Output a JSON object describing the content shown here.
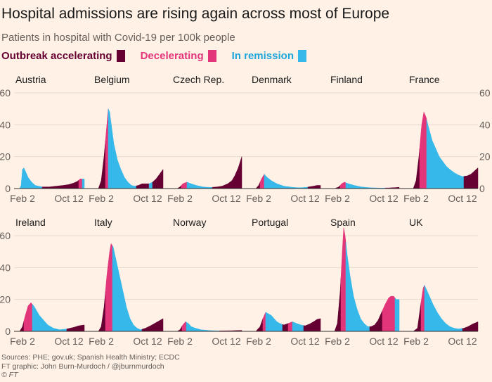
{
  "header": {
    "title": "Hospital admissions are rising again across most of Europe",
    "subtitle": "Patients in hospital with Covid-19 per 100k people"
  },
  "legend": [
    {
      "label": "Outbreak accelerating",
      "color": "#660033"
    },
    {
      "label": "Decelerating",
      "color": "#e3357a"
    },
    {
      "label": "In remission",
      "color": "#36b9ea"
    }
  ],
  "footer": {
    "sources": "Sources: PHE; gov.uk; Spanish Health Ministry; ECDC",
    "credit": "FT graphic: John Burn-Murdoch / @jburnmurdoch",
    "copyright": "© FT"
  },
  "chart_data": {
    "type": "area",
    "title": "Hospital admissions are rising again across most of Europe",
    "ylabel": "Patients in hospital with Covid-19 per 100k people",
    "ylim": [
      0,
      60
    ],
    "yticks": [
      0,
      20,
      40,
      60
    ],
    "xrange": [
      0,
      1
    ],
    "xticks": [
      {
        "x": 0.12,
        "label": "Feb 2"
      },
      {
        "x": 0.78,
        "label": "Oct 12"
      }
    ],
    "phase_labels": {
      "A": "Outbreak accelerating",
      "D": "Decelerating",
      "R": "In remission"
    },
    "series": [
      {
        "name": "Austria",
        "points": [
          [
            0.08,
            0
          ],
          [
            0.1,
            2
          ],
          [
            0.12,
            12
          ],
          [
            0.14,
            13
          ],
          [
            0.16,
            11
          ],
          [
            0.2,
            7
          ],
          [
            0.25,
            4
          ],
          [
            0.3,
            2
          ],
          [
            0.4,
            1
          ],
          [
            0.5,
            1
          ],
          [
            0.6,
            1.5
          ],
          [
            0.7,
            2
          ],
          [
            0.78,
            2.5
          ],
          [
            0.85,
            3.5
          ],
          [
            0.9,
            4.5
          ],
          [
            0.94,
            6
          ],
          [
            0.97,
            6
          ],
          [
            1.0,
            6
          ]
        ],
        "phases": [
          [
            0.08,
            0.12,
            "R"
          ],
          [
            0.12,
            0.3,
            "R"
          ],
          [
            0.3,
            0.4,
            "R"
          ],
          [
            0.4,
            0.92,
            "A"
          ],
          [
            0.92,
            0.97,
            "D"
          ],
          [
            0.97,
            1.0,
            "R"
          ]
        ]
      },
      {
        "name": "Belgium",
        "points": [
          [
            0.08,
            0
          ],
          [
            0.12,
            5
          ],
          [
            0.16,
            20
          ],
          [
            0.2,
            40
          ],
          [
            0.22,
            50
          ],
          [
            0.24,
            48
          ],
          [
            0.27,
            38
          ],
          [
            0.3,
            28
          ],
          [
            0.35,
            18
          ],
          [
            0.4,
            12
          ],
          [
            0.45,
            7
          ],
          [
            0.5,
            4
          ],
          [
            0.55,
            2
          ],
          [
            0.6,
            1.5
          ],
          [
            0.65,
            2
          ],
          [
            0.7,
            3
          ],
          [
            0.75,
            3
          ],
          [
            0.8,
            3
          ],
          [
            0.85,
            4
          ],
          [
            0.9,
            6
          ],
          [
            0.95,
            9
          ],
          [
            1.0,
            12
          ]
        ],
        "phases": [
          [
            0.08,
            0.18,
            "A"
          ],
          [
            0.18,
            0.22,
            "D"
          ],
          [
            0.22,
            0.62,
            "R"
          ],
          [
            0.62,
            0.8,
            "A"
          ],
          [
            0.8,
            0.85,
            "R"
          ],
          [
            0.85,
            1.0,
            "A"
          ]
        ]
      },
      {
        "name": "Czech Rep.",
        "points": [
          [
            0.08,
            0
          ],
          [
            0.12,
            1
          ],
          [
            0.16,
            3
          ],
          [
            0.22,
            4
          ],
          [
            0.28,
            3
          ],
          [
            0.35,
            2
          ],
          [
            0.45,
            1
          ],
          [
            0.55,
            0.7
          ],
          [
            0.65,
            1
          ],
          [
            0.72,
            1.5
          ],
          [
            0.8,
            3
          ],
          [
            0.86,
            5
          ],
          [
            0.9,
            8
          ],
          [
            0.95,
            13
          ],
          [
            1.0,
            20
          ]
        ],
        "phases": [
          [
            0.08,
            0.14,
            "A"
          ],
          [
            0.14,
            0.22,
            "D"
          ],
          [
            0.22,
            0.58,
            "R"
          ],
          [
            0.58,
            1.0,
            "A"
          ]
        ]
      },
      {
        "name": "Denmark",
        "points": [
          [
            0.08,
            0
          ],
          [
            0.12,
            2
          ],
          [
            0.16,
            6
          ],
          [
            0.2,
            9
          ],
          [
            0.24,
            7
          ],
          [
            0.3,
            5
          ],
          [
            0.38,
            3
          ],
          [
            0.48,
            1.5
          ],
          [
            0.6,
            0.8
          ],
          [
            0.7,
            0.5
          ],
          [
            0.8,
            0.8
          ],
          [
            0.9,
            1.5
          ],
          [
            0.95,
            2
          ],
          [
            1.0,
            2
          ]
        ],
        "phases": [
          [
            0.08,
            0.14,
            "A"
          ],
          [
            0.14,
            0.2,
            "D"
          ],
          [
            0.2,
            0.82,
            "R"
          ],
          [
            0.82,
            1.0,
            "A"
          ]
        ]
      },
      {
        "name": "Finland",
        "points": [
          [
            0.08,
            0
          ],
          [
            0.14,
            1
          ],
          [
            0.18,
            3
          ],
          [
            0.22,
            4
          ],
          [
            0.28,
            3
          ],
          [
            0.36,
            2
          ],
          [
            0.46,
            1
          ],
          [
            0.6,
            0.5
          ],
          [
            0.75,
            0.3
          ],
          [
            0.85,
            0.4
          ],
          [
            0.95,
            0.6
          ],
          [
            1.0,
            0.8
          ]
        ],
        "phases": [
          [
            0.08,
            0.16,
            "A"
          ],
          [
            0.16,
            0.24,
            "D"
          ],
          [
            0.24,
            0.8,
            "R"
          ],
          [
            0.8,
            1.0,
            "A"
          ]
        ]
      },
      {
        "name": "France",
        "points": [
          [
            0.08,
            0
          ],
          [
            0.12,
            5
          ],
          [
            0.16,
            20
          ],
          [
            0.2,
            40
          ],
          [
            0.23,
            48
          ],
          [
            0.26,
            45
          ],
          [
            0.3,
            38
          ],
          [
            0.35,
            30
          ],
          [
            0.4,
            25
          ],
          [
            0.45,
            20
          ],
          [
            0.5,
            17
          ],
          [
            0.55,
            14
          ],
          [
            0.6,
            12
          ],
          [
            0.66,
            10
          ],
          [
            0.72,
            8.5
          ],
          [
            0.78,
            7.5
          ],
          [
            0.85,
            8
          ],
          [
            0.9,
            9
          ],
          [
            0.95,
            11
          ],
          [
            1.0,
            13
          ]
        ],
        "phases": [
          [
            0.08,
            0.17,
            "A"
          ],
          [
            0.17,
            0.27,
            "D"
          ],
          [
            0.27,
            0.8,
            "R"
          ],
          [
            0.8,
            1.0,
            "A"
          ]
        ]
      },
      {
        "name": "Ireland",
        "points": [
          [
            0.08,
            0
          ],
          [
            0.12,
            3
          ],
          [
            0.16,
            10
          ],
          [
            0.2,
            16
          ],
          [
            0.24,
            18
          ],
          [
            0.28,
            16
          ],
          [
            0.32,
            13
          ],
          [
            0.36,
            10
          ],
          [
            0.42,
            7
          ],
          [
            0.48,
            4
          ],
          [
            0.56,
            2
          ],
          [
            0.65,
            1
          ],
          [
            0.75,
            1.5
          ],
          [
            0.85,
            2.5
          ],
          [
            0.92,
            3.5
          ],
          [
            1.0,
            4
          ]
        ],
        "phases": [
          [
            0.08,
            0.14,
            "A"
          ],
          [
            0.14,
            0.26,
            "D"
          ],
          [
            0.26,
            0.75,
            "R"
          ],
          [
            0.75,
            1.0,
            "A"
          ]
        ]
      },
      {
        "name": "Italy",
        "points": [
          [
            0.08,
            0
          ],
          [
            0.12,
            3
          ],
          [
            0.16,
            15
          ],
          [
            0.2,
            35
          ],
          [
            0.24,
            50
          ],
          [
            0.26,
            55
          ],
          [
            0.29,
            53
          ],
          [
            0.33,
            45
          ],
          [
            0.38,
            35
          ],
          [
            0.43,
            25
          ],
          [
            0.48,
            15
          ],
          [
            0.53,
            8
          ],
          [
            0.58,
            4
          ],
          [
            0.63,
            2
          ],
          [
            0.68,
            1
          ],
          [
            0.75,
            2
          ],
          [
            0.82,
            3.5
          ],
          [
            0.88,
            5
          ],
          [
            0.94,
            6.5
          ],
          [
            1.0,
            8
          ]
        ],
        "phases": [
          [
            0.08,
            0.18,
            "A"
          ],
          [
            0.18,
            0.28,
            "D"
          ],
          [
            0.28,
            0.7,
            "R"
          ],
          [
            0.7,
            1.0,
            "A"
          ]
        ]
      },
      {
        "name": "Norway",
        "points": [
          [
            0.08,
            0
          ],
          [
            0.12,
            1
          ],
          [
            0.16,
            4
          ],
          [
            0.2,
            6
          ],
          [
            0.24,
            5
          ],
          [
            0.28,
            3
          ],
          [
            0.34,
            2
          ],
          [
            0.42,
            1
          ],
          [
            0.55,
            0.5
          ],
          [
            0.7,
            0.3
          ],
          [
            0.85,
            0.4
          ],
          [
            1.0,
            0.6
          ]
        ],
        "phases": [
          [
            0.08,
            0.15,
            "A"
          ],
          [
            0.15,
            0.21,
            "D"
          ],
          [
            0.21,
            0.68,
            "R"
          ],
          [
            0.68,
            1.0,
            "A"
          ]
        ]
      },
      {
        "name": "Portugal",
        "points": [
          [
            0.08,
            0
          ],
          [
            0.14,
            3
          ],
          [
            0.18,
            8
          ],
          [
            0.22,
            12
          ],
          [
            0.26,
            11
          ],
          [
            0.3,
            10
          ],
          [
            0.34,
            8
          ],
          [
            0.38,
            6
          ],
          [
            0.42,
            5
          ],
          [
            0.48,
            4
          ],
          [
            0.54,
            5
          ],
          [
            0.6,
            6
          ],
          [
            0.66,
            5
          ],
          [
            0.72,
            4
          ],
          [
            0.78,
            3.5
          ],
          [
            0.84,
            4.5
          ],
          [
            0.9,
            6
          ],
          [
            0.95,
            7.5
          ],
          [
            1.0,
            8
          ]
        ],
        "phases": [
          [
            0.08,
            0.18,
            "A"
          ],
          [
            0.18,
            0.22,
            "D"
          ],
          [
            0.22,
            0.46,
            "R"
          ],
          [
            0.46,
            0.54,
            "A"
          ],
          [
            0.54,
            0.6,
            "D"
          ],
          [
            0.6,
            0.76,
            "R"
          ],
          [
            0.76,
            1.0,
            "A"
          ]
        ]
      },
      {
        "name": "Spain",
        "points": [
          [
            0.08,
            0
          ],
          [
            0.12,
            5
          ],
          [
            0.16,
            25
          ],
          [
            0.19,
            50
          ],
          [
            0.21,
            65
          ],
          [
            0.23,
            60
          ],
          [
            0.26,
            48
          ],
          [
            0.3,
            35
          ],
          [
            0.35,
            22
          ],
          [
            0.4,
            14
          ],
          [
            0.45,
            8
          ],
          [
            0.5,
            5
          ],
          [
            0.55,
            3
          ],
          [
            0.6,
            3
          ],
          [
            0.65,
            4
          ],
          [
            0.7,
            7
          ],
          [
            0.75,
            12
          ],
          [
            0.8,
            17
          ],
          [
            0.85,
            21
          ],
          [
            0.88,
            22
          ],
          [
            0.92,
            22
          ],
          [
            0.96,
            20
          ],
          [
            1.0,
            20
          ]
        ],
        "phases": [
          [
            0.08,
            0.17,
            "A"
          ],
          [
            0.17,
            0.24,
            "D"
          ],
          [
            0.24,
            0.58,
            "R"
          ],
          [
            0.58,
            0.76,
            "A"
          ],
          [
            0.76,
            0.94,
            "D"
          ],
          [
            0.94,
            1.0,
            "R"
          ]
        ]
      },
      {
        "name": "UK",
        "points": [
          [
            0.08,
            0
          ],
          [
            0.14,
            2
          ],
          [
            0.18,
            15
          ],
          [
            0.22,
            27
          ],
          [
            0.24,
            29
          ],
          [
            0.27,
            26
          ],
          [
            0.31,
            22
          ],
          [
            0.36,
            17
          ],
          [
            0.42,
            12
          ],
          [
            0.48,
            8
          ],
          [
            0.54,
            5
          ],
          [
            0.6,
            3
          ],
          [
            0.66,
            2
          ],
          [
            0.72,
            1.5
          ],
          [
            0.8,
            2
          ],
          [
            0.86,
            3
          ],
          [
            0.92,
            4.5
          ],
          [
            1.0,
            6
          ]
        ],
        "phases": [
          [
            0.08,
            0.19,
            "A"
          ],
          [
            0.19,
            0.24,
            "D"
          ],
          [
            0.24,
            0.78,
            "R"
          ],
          [
            0.78,
            1.0,
            "A"
          ]
        ]
      }
    ]
  }
}
